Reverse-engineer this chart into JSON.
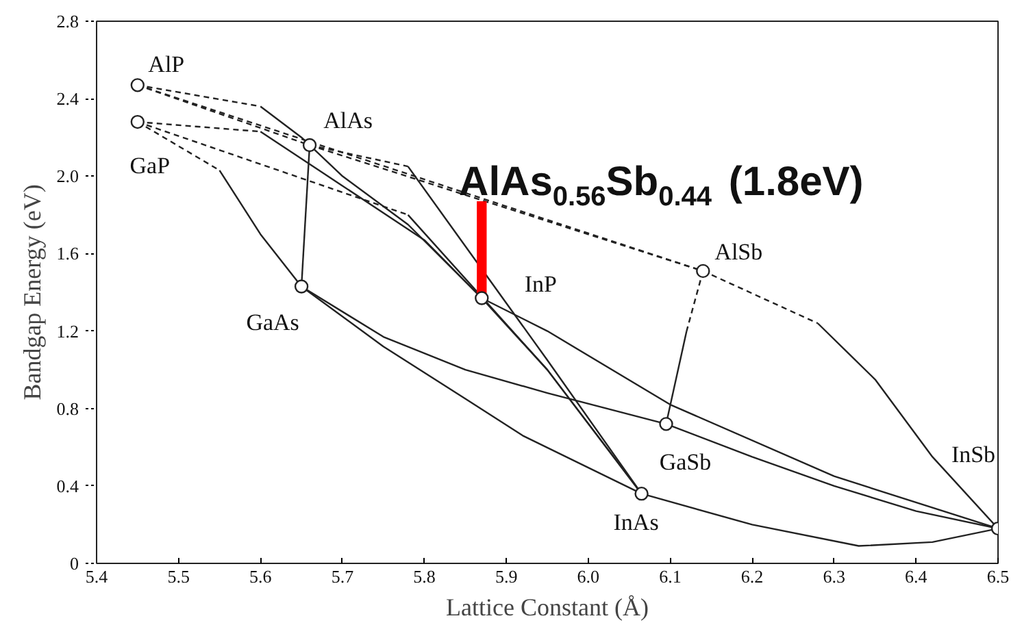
{
  "chart_data": {
    "type": "line",
    "xlabel": "Lattice Constant (Å)",
    "ylabel": "Bandgap Energy (eV)",
    "xlim": [
      5.4,
      6.5
    ],
    "ylim": [
      0,
      2.8
    ],
    "xticks": [
      5.4,
      5.5,
      5.6,
      5.7,
      5.8,
      5.9,
      {
        "value": 6,
        "label": "6.0"
      },
      6.1,
      6.2,
      6.3,
      6.4,
      6.5
    ],
    "yticks": [
      0,
      0.4,
      0.8,
      1.2,
      1.6,
      {
        "value": 2,
        "label": "2.0"
      },
      2.4,
      2.8
    ],
    "series": [
      {
        "line_style": "dashed",
        "color": "#222222",
        "x": [
          5.45,
          5.6
        ],
        "values": [
          2.47,
          2.36
        ]
      },
      {
        "color": "#222222",
        "x": [
          5.6,
          5.65,
          5.7,
          5.78,
          5.87
        ],
        "values": [
          2.36,
          2.2,
          2.0,
          1.75,
          1.37
        ]
      },
      {
        "line_style": "dashed",
        "color": "#222222",
        "x": [
          5.45,
          5.66
        ],
        "values": [
          2.47,
          2.16
        ]
      },
      {
        "line_style": "dashed",
        "color": "#222222",
        "x": [
          5.45,
          6.14
        ],
        "values": [
          2.47,
          1.51
        ]
      },
      {
        "line_style": "dashed",
        "color": "#222222",
        "x": [
          5.66,
          6.14
        ],
        "values": [
          2.16,
          1.51
        ]
      },
      {
        "line_style": "dashed",
        "color": "#222222",
        "x": [
          5.45,
          5.6
        ],
        "values": [
          2.28,
          2.23
        ]
      },
      {
        "color": "#222222",
        "x": [
          5.6,
          5.7,
          5.8,
          5.87
        ],
        "values": [
          2.23,
          1.95,
          1.67,
          1.37
        ]
      },
      {
        "line_style": "dashed",
        "color": "#222222",
        "x": [
          5.45,
          5.78
        ],
        "values": [
          2.28,
          1.8
        ]
      },
      {
        "color": "#222222",
        "x": [
          5.78,
          5.95,
          6.065
        ],
        "values": [
          1.8,
          1.0,
          0.36
        ]
      },
      {
        "line_style": "dashed",
        "color": "#222222",
        "x": [
          5.45,
          5.55
        ],
        "values": [
          2.28,
          2.03
        ]
      },
      {
        "color": "#222222",
        "x": [
          5.55,
          5.6,
          5.65
        ],
        "values": [
          2.03,
          1.7,
          1.43
        ]
      },
      {
        "line_style": "dashed",
        "color": "#222222",
        "x": [
          5.66,
          5.78
        ],
        "values": [
          2.16,
          2.05
        ]
      },
      {
        "color": "#222222",
        "x": [
          5.78,
          5.95,
          6.065
        ],
        "values": [
          2.05,
          1.05,
          0.36
        ]
      },
      {
        "color": "#222222",
        "x": [
          5.66,
          5.65
        ],
        "values": [
          2.16,
          1.43
        ]
      },
      {
        "line_style": "dashed",
        "color": "#222222",
        "x": [
          6.14,
          6.12
        ],
        "values": [
          1.51,
          1.2
        ]
      },
      {
        "color": "#222222",
        "x": [
          6.12,
          6.095
        ],
        "values": [
          1.2,
          0.72
        ]
      },
      {
        "line_style": "dashed",
        "color": "#222222",
        "x": [
          6.14,
          6.28
        ],
        "values": [
          1.51,
          1.24
        ]
      },
      {
        "color": "#222222",
        "x": [
          6.28,
          6.35,
          6.42,
          6.5
        ],
        "values": [
          1.24,
          0.95,
          0.55,
          0.18
        ]
      },
      {
        "color": "#222222",
        "x": [
          5.65,
          5.75,
          5.85,
          5.92,
          6.065
        ],
        "values": [
          1.43,
          1.12,
          0.85,
          0.66,
          0.36
        ]
      },
      {
        "color": "#222222",
        "x": [
          5.65,
          5.75,
          5.85,
          5.95,
          6.095
        ],
        "values": [
          1.43,
          1.17,
          1.0,
          0.88,
          0.72
        ]
      },
      {
        "color": "#222222",
        "x": [
          6.095,
          6.2,
          6.3,
          6.4,
          6.5
        ],
        "values": [
          0.72,
          0.55,
          0.4,
          0.27,
          0.18
        ]
      },
      {
        "color": "#222222",
        "x": [
          5.87,
          5.95,
          6.1,
          6.3,
          6.5
        ],
        "values": [
          1.37,
          1.2,
          0.82,
          0.45,
          0.18
        ]
      },
      {
        "color": "#222222",
        "x": [
          5.87,
          5.95,
          6.065
        ],
        "values": [
          1.37,
          1.0,
          0.36
        ]
      },
      {
        "color": "#222222",
        "x": [
          6.065,
          6.2,
          6.33,
          6.42,
          6.5
        ],
        "values": [
          0.36,
          0.2,
          0.09,
          0.11,
          0.18
        ]
      },
      {
        "type": "bar",
        "color": "#ff0000",
        "x": [
          5.87
        ],
        "base": [
          1.37
        ],
        "values": [
          0.5
        ]
      },
      {
        "type": "scatter",
        "marker": "circle",
        "color": "#222222",
        "x": [
          5.45,
          5.45,
          5.66,
          5.65,
          5.87,
          6.14,
          6.095,
          6.065,
          6.5
        ],
        "values": [
          2.47,
          2.28,
          2.16,
          1.43,
          1.37,
          1.51,
          0.72,
          0.36,
          0.18
        ]
      }
    ],
    "annotations": [
      {
        "text": "AlP",
        "x": 5.45,
        "y": 2.47
      },
      {
        "text": "GaP",
        "x": 5.45,
        "y": 2.28
      },
      {
        "text": "AlAs",
        "x": 5.66,
        "y": 2.16
      },
      {
        "text": "GaAs",
        "x": 5.65,
        "y": 1.43
      },
      {
        "text": "InP",
        "x": 5.87,
        "y": 1.37
      },
      {
        "text": "AlSb",
        "x": 6.14,
        "y": 1.51
      },
      {
        "text": "GaSb",
        "x": 6.095,
        "y": 0.72
      },
      {
        "text": "InAs",
        "x": 6.065,
        "y": 0.36
      },
      {
        "text": "InSb",
        "x": 6.5,
        "y": 0.18
      },
      {
        "text": "AlAs$_{0.56}$Sb$_{0.44}$ (1.8eV)",
        "x": 5.87,
        "y": 1.87
      }
    ]
  }
}
